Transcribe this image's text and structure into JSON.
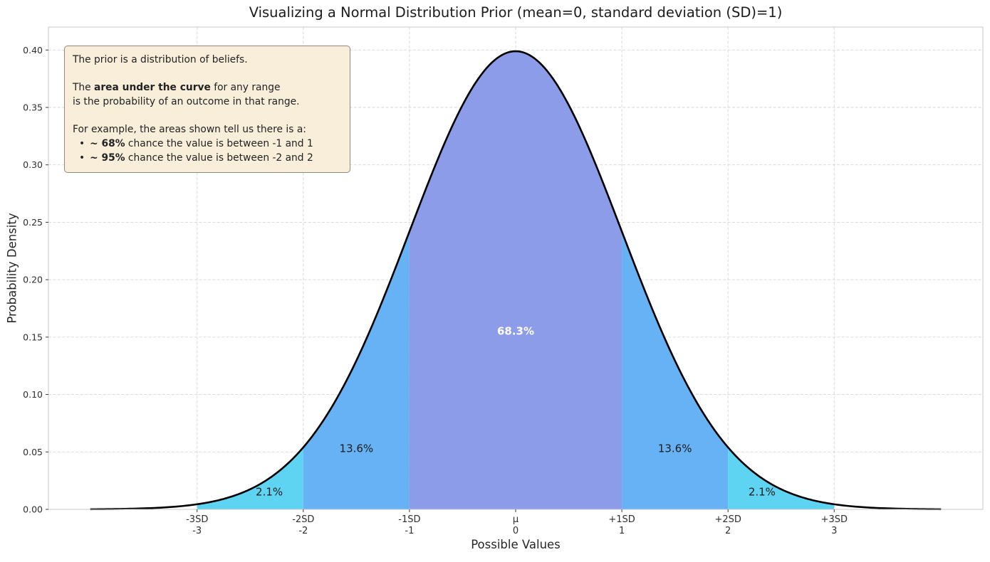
{
  "title": "Visualizing a Normal Distribution Prior (mean=0, standard deviation (SD)=1)",
  "annotation": {
    "p1": "The prior is a distribution of beliefs.",
    "p2_pre": "The ",
    "p2_bold": "area under the curve",
    "p2_post": " for any range",
    "p2_line2": "is the probability of an outcome in that range.",
    "p3": "For example, the areas shown tell us there is a:",
    "bullet_glyph": "•",
    "bullets": [
      {
        "bold": "~ 68%",
        "rest": " chance the value is between -1 and 1"
      },
      {
        "bold": "~ 95%",
        "rest": " chance the value is between -2 and 2"
      }
    ]
  },
  "chart_data": {
    "type": "area",
    "title": "Visualizing a Normal Distribution Prior (mean=0, standard deviation (SD)=1)",
    "xlabel": "Possible Values",
    "ylabel": "Probability Density",
    "distribution": {
      "mean": 0,
      "sd": 1,
      "peak_density": 0.3989
    },
    "curve_range": [
      -4,
      4
    ],
    "curve_color": "#000000",
    "xlim": [
      -4.4,
      4.4
    ],
    "ylim": [
      0,
      0.42
    ],
    "grid": true,
    "yticks": [
      {
        "value": 0.0,
        "label": "0.00"
      },
      {
        "value": 0.05,
        "label": "0.05"
      },
      {
        "value": 0.1,
        "label": "0.10"
      },
      {
        "value": 0.15,
        "label": "0.15"
      },
      {
        "value": 0.2,
        "label": "0.20"
      },
      {
        "value": 0.25,
        "label": "0.25"
      },
      {
        "value": 0.3,
        "label": "0.30"
      },
      {
        "value": 0.35,
        "label": "0.35"
      },
      {
        "value": 0.4,
        "label": "0.40"
      }
    ],
    "xticks": [
      {
        "value": -3,
        "sd_label": "-3SD",
        "value_label": "-3"
      },
      {
        "value": -2,
        "sd_label": "-2SD",
        "value_label": "-2"
      },
      {
        "value": -1,
        "sd_label": "-1SD",
        "value_label": "-1"
      },
      {
        "value": 0,
        "sd_label": "μ",
        "value_label": "0"
      },
      {
        "value": 1,
        "sd_label": "+1SD",
        "value_label": "1"
      },
      {
        "value": 2,
        "sd_label": "+2SD",
        "value_label": "2"
      },
      {
        "value": 3,
        "sd_label": "+3SD",
        "value_label": "3"
      }
    ],
    "regions": [
      {
        "from": -3,
        "to": -2,
        "color": "#5ed4f2",
        "probability": "2.1%"
      },
      {
        "from": -2,
        "to": -1,
        "color": "#67b2f4",
        "probability": "13.6%"
      },
      {
        "from": -1,
        "to": 1,
        "color": "#8c9ce9",
        "probability": "68.3%"
      },
      {
        "from": 1,
        "to": 2,
        "color": "#67b2f4",
        "probability": "13.6%"
      },
      {
        "from": 2,
        "to": 3,
        "color": "#5ed4f2",
        "probability": "2.1%"
      }
    ],
    "region_labels": [
      {
        "text": "2.1%",
        "x": -2.32,
        "y": 0.012,
        "color": "#1a1a1a",
        "bold": false
      },
      {
        "text": "13.6%",
        "x": -1.5,
        "y": 0.05,
        "color": "#1a1a1a",
        "bold": false
      },
      {
        "text": "68.3%",
        "x": 0,
        "y": 0.152,
        "color": "#ffffff",
        "bold": true
      },
      {
        "text": "13.6%",
        "x": 1.5,
        "y": 0.05,
        "color": "#1a1a1a",
        "bold": false
      },
      {
        "text": "2.1%",
        "x": 2.32,
        "y": 0.012,
        "color": "#1a1a1a",
        "bold": false
      }
    ]
  }
}
